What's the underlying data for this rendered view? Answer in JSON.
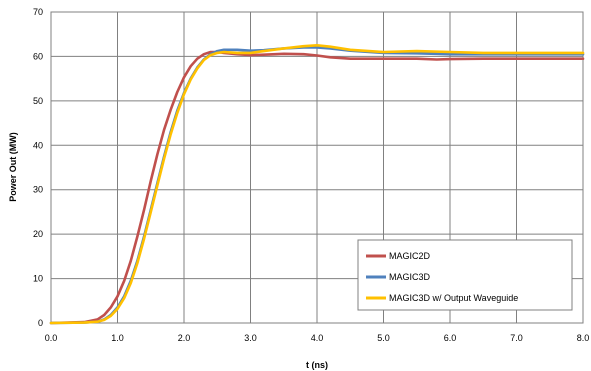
{
  "chart_data": {
    "type": "line",
    "xlabel": "t (ns)",
    "ylabel": "Power Out (MW)",
    "xlim": [
      0,
      8
    ],
    "ylim": [
      0,
      70
    ],
    "x_ticks": [
      "0.0",
      "1.0",
      "2.0",
      "3.0",
      "4.0",
      "5.0",
      "6.0",
      "7.0",
      "8.0"
    ],
    "y_ticks": [
      "0",
      "10",
      "20",
      "30",
      "40",
      "50",
      "60",
      "70"
    ],
    "grid": true,
    "legend_position": "bottom-right",
    "series": [
      {
        "name": "MAGIC2D",
        "color": "#c0504d",
        "x": [
          0,
          0.5,
          0.7,
          0.8,
          0.9,
          1.0,
          1.1,
          1.2,
          1.3,
          1.4,
          1.5,
          1.6,
          1.7,
          1.8,
          1.9,
          2.0,
          2.1,
          2.2,
          2.3,
          2.4,
          2.5,
          2.6,
          2.8,
          3.0,
          3.2,
          3.5,
          3.8,
          4.0,
          4.2,
          4.5,
          5.0,
          5.5,
          5.8,
          6.0,
          6.5,
          7.0,
          7.5,
          8.0
        ],
        "y": [
          0,
          0.2,
          0.8,
          1.8,
          3.5,
          6.0,
          9.5,
          14.0,
          19.5,
          25.5,
          32.0,
          38.0,
          43.5,
          48.0,
          52.0,
          55.3,
          57.8,
          59.5,
          60.5,
          61.0,
          61.0,
          60.8,
          60.5,
          60.3,
          60.4,
          60.6,
          60.5,
          60.2,
          59.8,
          59.5,
          59.5,
          59.5,
          59.3,
          59.4,
          59.5,
          59.5,
          59.5,
          59.5
        ]
      },
      {
        "name": "MAGIC3D",
        "color": "#4f81bd",
        "x": [
          0,
          0.5,
          0.7,
          0.8,
          0.9,
          1.0,
          1.1,
          1.2,
          1.3,
          1.4,
          1.5,
          1.6,
          1.7,
          1.8,
          1.9,
          2.0,
          2.1,
          2.2,
          2.3,
          2.4,
          2.5,
          2.6,
          2.8,
          3.0,
          3.2,
          3.5,
          3.8,
          4.0,
          4.2,
          4.5,
          5.0,
          5.5,
          6.0,
          6.5,
          7.0,
          7.5,
          8.0
        ],
        "y": [
          0,
          0.1,
          0.3,
          0.8,
          1.8,
          3.5,
          6.0,
          9.5,
          14.0,
          19.5,
          25.5,
          31.5,
          37.5,
          43.0,
          47.8,
          51.8,
          55.0,
          57.5,
          59.3,
          60.5,
          61.2,
          61.5,
          61.5,
          61.3,
          61.4,
          61.8,
          62.0,
          62.0,
          61.8,
          61.3,
          60.8,
          60.7,
          60.5,
          60.5,
          60.5,
          60.5,
          60.5
        ]
      },
      {
        "name": "MAGIC3D w/ Output Waveguide",
        "color": "#ffc000",
        "x": [
          0,
          0.5,
          0.7,
          0.8,
          0.9,
          1.0,
          1.1,
          1.2,
          1.3,
          1.4,
          1.5,
          1.6,
          1.7,
          1.8,
          1.9,
          2.0,
          2.1,
          2.2,
          2.3,
          2.4,
          2.5,
          2.6,
          2.8,
          3.0,
          3.2,
          3.5,
          3.8,
          4.0,
          4.2,
          4.5,
          5.0,
          5.5,
          6.0,
          6.5,
          7.0,
          7.5,
          8.0
        ],
        "y": [
          0,
          0.1,
          0.3,
          0.7,
          1.6,
          3.2,
          5.6,
          9.0,
          13.5,
          19.0,
          25.0,
          31.0,
          37.0,
          42.5,
          47.3,
          51.5,
          54.8,
          57.3,
          59.2,
          60.3,
          60.8,
          61.0,
          60.8,
          60.8,
          61.2,
          61.8,
          62.3,
          62.5,
          62.2,
          61.5,
          61.0,
          61.2,
          61.0,
          60.8,
          60.8,
          60.8,
          60.8
        ]
      }
    ]
  }
}
